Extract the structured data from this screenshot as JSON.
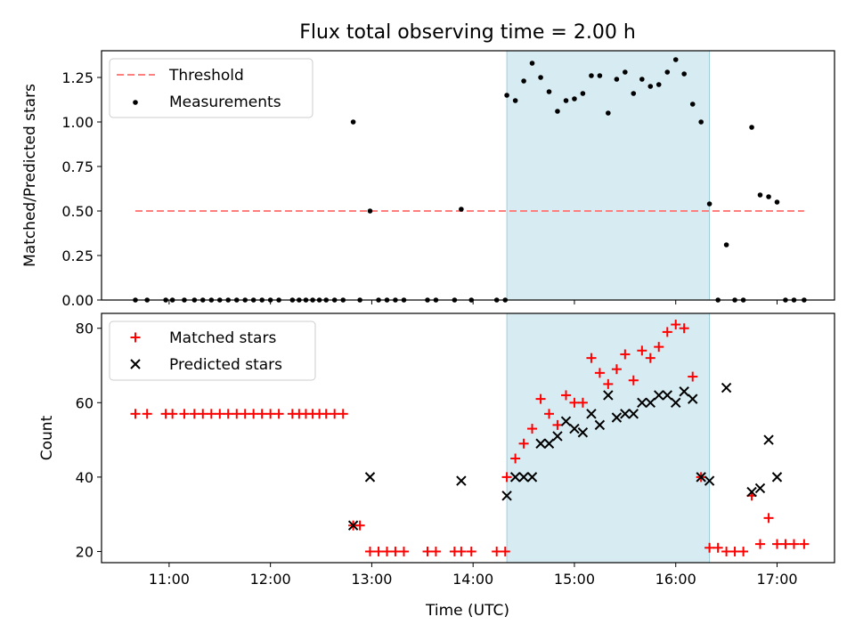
{
  "colors": {
    "shade": "#add8e6",
    "threshold": "#ff7f7f",
    "matched": "#ff0000",
    "predicted": "#000000",
    "measurement": "#000000"
  },
  "chart_data": [
    {
      "type": "scatter",
      "title": "Flux total observing time = 2.00 h",
      "ylabel": "Matched/Predicted stars",
      "xlabel": "",
      "xlim": [
        10.333,
        17.567
      ],
      "ylim": [
        0,
        1.4
      ],
      "yticks": [
        0,
        0.25,
        0.5,
        0.75,
        1.0,
        1.25
      ],
      "ytick_labels": [
        "0.00",
        "0.25",
        "0.50",
        "0.75",
        "1.00",
        "1.25"
      ],
      "xticks": [
        11,
        12,
        13,
        14,
        15,
        16,
        17
      ],
      "shade": [
        14.333,
        16.333
      ],
      "legend": {
        "location": "upper-left",
        "entries": [
          "Threshold",
          "Measurements"
        ]
      },
      "threshold": {
        "name": "Threshold",
        "value": 0.5,
        "x": [
          10.667,
          17.267
        ]
      },
      "measurements": {
        "name": "Measurements",
        "x": [
          10.667,
          10.783,
          10.967,
          11.033,
          11.15,
          11.25,
          11.333,
          11.417,
          11.5,
          11.583,
          11.667,
          11.75,
          11.833,
          11.917,
          12.0,
          12.083,
          12.217,
          12.283,
          12.35,
          12.417,
          12.483,
          12.55,
          12.633,
          12.717,
          12.817,
          12.883,
          12.983,
          13.067,
          13.15,
          13.233,
          13.317,
          13.55,
          13.633,
          13.817,
          13.883,
          13.983,
          14.233,
          14.317,
          14.333,
          14.417,
          14.5,
          14.583,
          14.667,
          14.75,
          14.833,
          14.917,
          15.0,
          15.083,
          15.167,
          15.25,
          15.333,
          15.417,
          15.5,
          15.583,
          15.667,
          15.75,
          15.833,
          15.917,
          16.0,
          16.083,
          16.167,
          16.25,
          16.333,
          16.417,
          16.5,
          16.583,
          16.667,
          16.75,
          16.833,
          16.917,
          17.0,
          17.083,
          17.167,
          17.267
        ],
        "y": [
          0,
          0,
          0,
          0,
          0,
          0,
          0,
          0,
          0,
          0,
          0,
          0,
          0,
          0,
          0,
          0,
          0,
          0,
          0,
          0,
          0,
          0,
          0,
          0,
          1.0,
          0,
          0.5,
          0,
          0,
          0,
          0,
          0,
          0,
          0,
          0.51,
          0,
          0,
          0,
          1.15,
          1.12,
          1.23,
          1.33,
          1.25,
          1.17,
          1.06,
          1.12,
          1.13,
          1.16,
          1.26,
          1.26,
          1.05,
          1.24,
          1.28,
          1.16,
          1.24,
          1.2,
          1.21,
          1.28,
          1.35,
          1.27,
          1.1,
          1.0,
          0.54,
          0,
          0.31,
          0,
          0,
          0.97,
          0.59,
          0.58,
          0.55,
          0,
          0,
          0
        ]
      }
    },
    {
      "type": "scatter",
      "title": "",
      "ylabel": "Count",
      "xlabel": "Time (UTC)",
      "xlim": [
        10.333,
        17.567
      ],
      "ylim": [
        17,
        84
      ],
      "yticks": [
        20,
        40,
        60,
        80
      ],
      "ytick_labels": [
        "20",
        "40",
        "60",
        "80"
      ],
      "xticks": [
        11,
        12,
        13,
        14,
        15,
        16,
        17
      ],
      "xtick_labels": [
        "11:00",
        "12:00",
        "13:00",
        "14:00",
        "15:00",
        "16:00",
        "17:00"
      ],
      "shade": [
        14.333,
        16.333
      ],
      "legend": {
        "location": "upper-left",
        "entries": [
          "Matched stars",
          "Predicted stars"
        ]
      },
      "series": [
        {
          "name": "Matched stars",
          "marker": "+",
          "x": [
            10.667,
            10.783,
            10.967,
            11.033,
            11.15,
            11.25,
            11.333,
            11.417,
            11.5,
            11.583,
            11.667,
            11.75,
            11.833,
            11.917,
            12.0,
            12.083,
            12.217,
            12.283,
            12.35,
            12.417,
            12.483,
            12.55,
            12.633,
            12.717,
            12.817,
            12.883,
            12.983,
            13.067,
            13.15,
            13.233,
            13.317,
            13.55,
            13.633,
            13.817,
            13.883,
            13.983,
            14.233,
            14.317,
            14.333,
            14.417,
            14.5,
            14.583,
            14.667,
            14.75,
            14.833,
            14.917,
            15.0,
            15.083,
            15.167,
            15.25,
            15.333,
            15.417,
            15.5,
            15.583,
            15.667,
            15.75,
            15.833,
            15.917,
            16.0,
            16.083,
            16.167,
            16.25,
            16.333,
            16.417,
            16.5,
            16.583,
            16.667,
            16.75,
            16.833,
            16.917,
            17.0,
            17.083,
            17.167,
            17.267
          ],
          "y": [
            57,
            57,
            57,
            57,
            57,
            57,
            57,
            57,
            57,
            57,
            57,
            57,
            57,
            57,
            57,
            57,
            57,
            57,
            57,
            57,
            57,
            57,
            57,
            57,
            27,
            27,
            20,
            20,
            20,
            20,
            20,
            20,
            20,
            20,
            20,
            20,
            20,
            20,
            40,
            45,
            49,
            53,
            61,
            57,
            54,
            62,
            60,
            60,
            72,
            68,
            65,
            69,
            73,
            66,
            74,
            72,
            75,
            79,
            81,
            80,
            67,
            40,
            21,
            21,
            20,
            20,
            20,
            35,
            22,
            29,
            22,
            22,
            22,
            22
          ]
        },
        {
          "name": "Predicted stars",
          "marker": "x",
          "x": [
            12.817,
            12.983,
            13.883,
            14.333,
            14.417,
            14.5,
            14.583,
            14.667,
            14.75,
            14.833,
            14.917,
            15.0,
            15.083,
            15.167,
            15.25,
            15.333,
            15.417,
            15.5,
            15.583,
            15.667,
            15.75,
            15.833,
            15.917,
            16.0,
            16.083,
            16.167,
            16.25,
            16.333,
            16.5,
            16.75,
            16.833,
            16.917,
            17.0
          ],
          "y": [
            27,
            40,
            39,
            35,
            40,
            40,
            40,
            49,
            49,
            51,
            55,
            53,
            52,
            57,
            54,
            62,
            56,
            57,
            57,
            60,
            60,
            62,
            62,
            60,
            63,
            61,
            40,
            39,
            64,
            36,
            37,
            50,
            40
          ]
        }
      ]
    }
  ]
}
